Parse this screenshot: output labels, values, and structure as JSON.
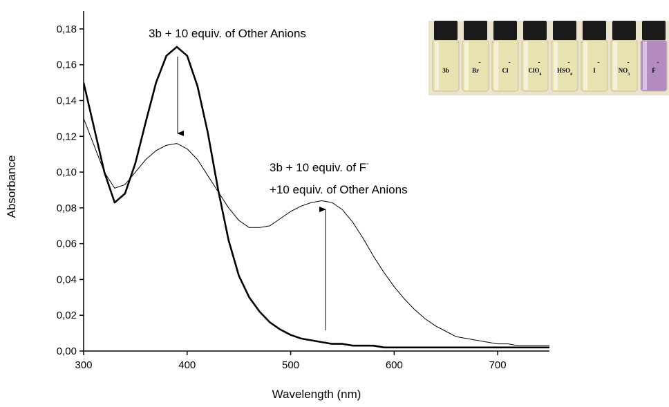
{
  "chart_data": {
    "type": "line",
    "x_label": "Wavelength (nm)",
    "y_label": "Absorbance",
    "x": [
      300,
      310,
      320,
      330,
      340,
      350,
      360,
      370,
      380,
      390,
      400,
      410,
      420,
      430,
      440,
      450,
      460,
      470,
      480,
      490,
      500,
      510,
      520,
      530,
      540,
      550,
      560,
      570,
      580,
      590,
      600,
      610,
      620,
      630,
      640,
      650,
      660,
      670,
      680,
      690,
      700,
      710,
      720,
      730,
      740,
      750
    ],
    "series": [
      {
        "color": "#000000",
        "values": [
          0.15,
          0.125,
          0.1,
          0.083,
          0.088,
          0.105,
          0.128,
          0.15,
          0.165,
          0.17,
          0.165,
          0.148,
          0.122,
          0.09,
          0.062,
          0.042,
          0.03,
          0.022,
          0.016,
          0.012,
          0.009,
          0.007,
          0.006,
          0.005,
          0.004,
          0.004,
          0.003,
          0.003,
          0.003,
          0.002,
          0.002,
          0.002,
          0.002,
          0.002,
          0.002,
          0.002,
          0.002,
          0.002,
          0.002,
          0.002,
          0.002,
          0.002,
          0.002,
          0.002,
          0.002,
          0.002
        ]
      },
      {
        "color": "#000000",
        "values": [
          0.13,
          0.115,
          0.1,
          0.091,
          0.093,
          0.1,
          0.107,
          0.112,
          0.115,
          0.116,
          0.113,
          0.107,
          0.098,
          0.089,
          0.08,
          0.073,
          0.069,
          0.069,
          0.07,
          0.074,
          0.078,
          0.081,
          0.083,
          0.084,
          0.083,
          0.079,
          0.072,
          0.063,
          0.053,
          0.044,
          0.036,
          0.029,
          0.023,
          0.018,
          0.014,
          0.011,
          0.008,
          0.007,
          0.006,
          0.005,
          0.004,
          0.004,
          0.003,
          0.003,
          0.003,
          0.003
        ]
      }
    ],
    "xlim": [
      300,
      750
    ],
    "xticks": [
      300,
      400,
      500,
      600,
      700
    ],
    "ylim": [
      0,
      0.19
    ],
    "yticks": [
      {
        "value": 0,
        "label": "0,00"
      },
      {
        "value": 0.02,
        "label": "0,02"
      },
      {
        "value": 0.04,
        "label": "0,04"
      },
      {
        "value": 0.06,
        "label": "0,06"
      },
      {
        "value": 0.08,
        "label": "0,08"
      },
      {
        "value": 0.1,
        "label": "0,10"
      },
      {
        "value": 0.12,
        "label": "0,12"
      },
      {
        "value": 0.14,
        "label": "0,14"
      },
      {
        "value": 0.16,
        "label": "0,16"
      },
      {
        "value": 0.18,
        "label": "0,18"
      }
    ],
    "grid": false,
    "annotations": [
      {
        "text": "3b + 10 equiv. of Other Anions"
      },
      {
        "text": "3b + 10 equiv. of F",
        "sup": "-"
      },
      {
        "text": "+10 equiv. of Other Anions"
      }
    ],
    "inset": {
      "vials": [
        {
          "name": "3b"
        },
        {
          "name": "Br",
          "sup": "-"
        },
        {
          "name": "Cl",
          "sup": "-"
        },
        {
          "name": "ClO",
          "sub": "4",
          "sup": "-"
        },
        {
          "name": "HSO",
          "sub": "4",
          "sup": "-"
        },
        {
          "name": "I",
          "sup": "-"
        },
        {
          "name": "NO",
          "sub": "3",
          "sup": "-"
        },
        {
          "name": "F",
          "sup": "-"
        }
      ]
    }
  }
}
